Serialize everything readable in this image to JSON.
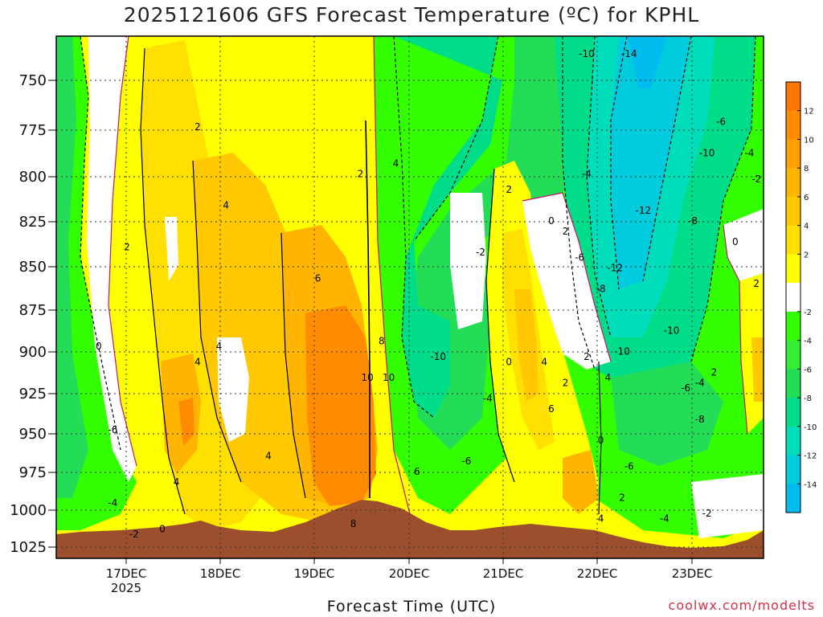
{
  "chart_data": {
    "type": "heatmap",
    "title": "2025121606 GFS Forecast Temperature (ºC) for KPHL",
    "xlabel": "Forecast Time (UTC)",
    "ylabel": "",
    "credit": "coolwx.com/modelts",
    "y_levels": [
      "750",
      "775",
      "800",
      "825",
      "850",
      "875",
      "900",
      "925",
      "950",
      "975",
      "1000",
      "1025"
    ],
    "x_ticks": [
      {
        "label": "17DEC",
        "sub": "2025"
      },
      {
        "label": "18DEC",
        "sub": ""
      },
      {
        "label": "19DEC",
        "sub": ""
      },
      {
        "label": "20DEC",
        "sub": ""
      },
      {
        "label": "21DEC",
        "sub": ""
      },
      {
        "label": "22DEC",
        "sub": ""
      },
      {
        "label": "23DEC",
        "sub": ""
      }
    ],
    "colorbar": {
      "ticks": [
        "12",
        "10",
        "8",
        "6",
        "4",
        "2",
        "-2",
        "-4",
        "-6",
        "-8",
        "-10",
        "-12",
        "-14"
      ],
      "colors": [
        "#ff7700",
        "#ff8c00",
        "#ffa000",
        "#ffb400",
        "#ffc800",
        "#ffe000",
        "#ffff00",
        "#ffffff",
        "#33ff00",
        "#33ee33",
        "#22dd55",
        "#00dd88",
        "#00ddbb",
        "#00ccdd",
        "#00bbee"
      ]
    },
    "contour_labels": [
      {
        "text": "2",
        "t": 0.2,
        "p": 0.18
      },
      {
        "text": "4",
        "t": 0.24,
        "p": 0.33
      },
      {
        "text": "2",
        "t": 0.1,
        "p": 0.41
      },
      {
        "text": "0",
        "t": 0.06,
        "p": 0.6
      },
      {
        "text": "-6",
        "t": 0.08,
        "p": 0.76
      },
      {
        "text": "-4",
        "t": 0.08,
        "p": 0.9
      },
      {
        "text": "-2",
        "t": 0.11,
        "p": 0.96
      },
      {
        "text": "0",
        "t": 0.15,
        "p": 0.95
      },
      {
        "text": "4",
        "t": 0.2,
        "p": 0.63
      },
      {
        "text": "4",
        "t": 0.17,
        "p": 0.86
      },
      {
        "text": "4",
        "t": 0.3,
        "p": 0.81
      },
      {
        "text": "4",
        "t": 0.23,
        "p": 0.6
      },
      {
        "text": "6",
        "t": 0.37,
        "p": 0.47
      },
      {
        "text": "2",
        "t": 0.43,
        "p": 0.27
      },
      {
        "text": "4",
        "t": 0.48,
        "p": 0.25
      },
      {
        "text": "8",
        "t": 0.46,
        "p": 0.59
      },
      {
        "text": "10",
        "t": 0.44,
        "p": 0.66
      },
      {
        "text": "10",
        "t": 0.47,
        "p": 0.66
      },
      {
        "text": "6",
        "t": 0.51,
        "p": 0.84
      },
      {
        "text": "8",
        "t": 0.42,
        "p": 0.94
      },
      {
        "text": "-2",
        "t": 0.6,
        "p": 0.42
      },
      {
        "text": "-10",
        "t": 0.54,
        "p": 0.62
      },
      {
        "text": "-4",
        "t": 0.61,
        "p": 0.7
      },
      {
        "text": "-6",
        "t": 0.58,
        "p": 0.82
      },
      {
        "text": "2",
        "t": 0.64,
        "p": 0.3
      },
      {
        "text": "0",
        "t": 0.7,
        "p": 0.36
      },
      {
        "text": "2",
        "t": 0.72,
        "p": 0.38
      },
      {
        "text": "0",
        "t": 0.64,
        "p": 0.63
      },
      {
        "text": "4",
        "t": 0.69,
        "p": 0.63
      },
      {
        "text": "2",
        "t": 0.72,
        "p": 0.67
      },
      {
        "text": "6",
        "t": 0.7,
        "p": 0.72
      },
      {
        "text": "-10",
        "t": 0.75,
        "p": 0.04
      },
      {
        "text": "-14",
        "t": 0.81,
        "p": 0.04
      },
      {
        "text": "-6",
        "t": 0.74,
        "p": 0.43
      },
      {
        "text": "-8",
        "t": 0.77,
        "p": 0.49
      },
      {
        "text": "-12",
        "t": 0.79,
        "p": 0.45
      },
      {
        "text": "-12",
        "t": 0.83,
        "p": 0.34
      },
      {
        "text": "-10",
        "t": 0.87,
        "p": 0.57
      },
      {
        "text": "-10",
        "t": 0.8,
        "p": 0.61
      },
      {
        "text": "-8",
        "t": 0.9,
        "p": 0.36
      },
      {
        "text": "-4",
        "t": 0.75,
        "p": 0.27
      },
      {
        "text": "2",
        "t": 0.75,
        "p": 0.62
      },
      {
        "text": "4",
        "t": 0.78,
        "p": 0.66
      },
      {
        "text": "0",
        "t": 0.77,
        "p": 0.78
      },
      {
        "text": "-6",
        "t": 0.81,
        "p": 0.83
      },
      {
        "text": "-6",
        "t": 0.89,
        "p": 0.68
      },
      {
        "text": "-4",
        "t": 0.91,
        "p": 0.67
      },
      {
        "text": "-8",
        "t": 0.91,
        "p": 0.74
      },
      {
        "text": "-6",
        "t": 0.94,
        "p": 0.17
      },
      {
        "text": "-10",
        "t": 0.92,
        "p": 0.23
      },
      {
        "text": "-4",
        "t": 0.98,
        "p": 0.23
      },
      {
        "text": "-2",
        "t": 0.99,
        "p": 0.28
      },
      {
        "text": "0",
        "t": 0.96,
        "p": 0.4
      },
      {
        "text": "2",
        "t": 0.99,
        "p": 0.48
      },
      {
        "text": "2",
        "t": 0.93,
        "p": 0.65
      },
      {
        "text": "-4",
        "t": 0.86,
        "p": 0.93
      },
      {
        "text": "-2",
        "t": 0.92,
        "p": 0.92
      },
      {
        "text": "2",
        "t": 0.8,
        "p": 0.89
      },
      {
        "text": "4",
        "t": 0.77,
        "p": 0.93
      }
    ]
  }
}
